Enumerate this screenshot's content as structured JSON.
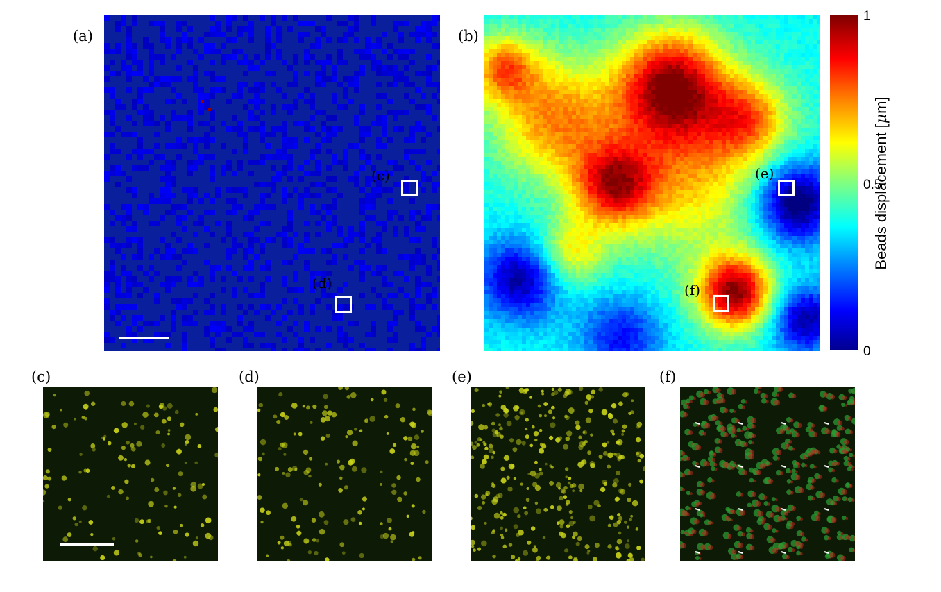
{
  "figure": {
    "panel_labels": {
      "a": "(a)",
      "b": "(b)",
      "c": "(c)",
      "d": "(d)",
      "e": "(e)",
      "f": "(f)"
    },
    "roi_labels": {
      "c": "(c)",
      "d": "(d)",
      "e": "(e)",
      "f": "(f)"
    },
    "colorbar": {
      "title": "Beads displacement",
      "unit_prefix": "[",
      "unit_symbol": "μ",
      "unit_suffix": "m]",
      "tick_labels": [
        "1",
        "0.5",
        "0"
      ],
      "max": 1,
      "min": 0,
      "colormap": "jet"
    },
    "colors": {
      "map_a_background": "#0a1f9c",
      "roi_box": "#ffffff",
      "scale_bar": "#ffffff",
      "bead_fluorescence": "#c8d21a",
      "bead_red_channel": "#c0281e",
      "bead_green_channel": "#2a9a32",
      "micrograph_background": "#0d1a05"
    }
  }
}
